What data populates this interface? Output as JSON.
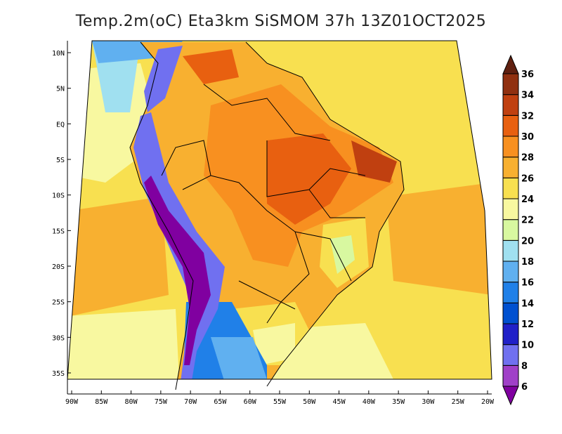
{
  "title": "Temp.2m(oC) Eta3km SiSMOM 37h 13Z01OCT2025",
  "map": {
    "variable": "Temperature 2m (oC)",
    "lon_ticks": [
      "90W",
      "85W",
      "80W",
      "75W",
      "70W",
      "65W",
      "60W",
      "55W",
      "50W",
      "45W",
      "40W",
      "35W",
      "30W",
      "25W",
      "20W"
    ],
    "lat_ticks": [
      "10N",
      "5N",
      "EQ",
      "5S",
      "10S",
      "15S",
      "20S",
      "25S",
      "30S",
      "35S"
    ]
  },
  "colorbar": {
    "levels": [
      "6",
      "8",
      "10",
      "12",
      "14",
      "16",
      "18",
      "20",
      "22",
      "24",
      "26",
      "28",
      "30",
      "32",
      "34",
      "36"
    ],
    "colors": [
      "#8000a0",
      "#a040c8",
      "#7070f0",
      "#2020c8",
      "#0050d0",
      "#2080e8",
      "#60b0f0",
      "#a0e0f0",
      "#d8f8a0",
      "#f8f8a0",
      "#f8e050",
      "#f8b030",
      "#f89020",
      "#e86010",
      "#c04010",
      "#903010",
      "#602010"
    ]
  }
}
